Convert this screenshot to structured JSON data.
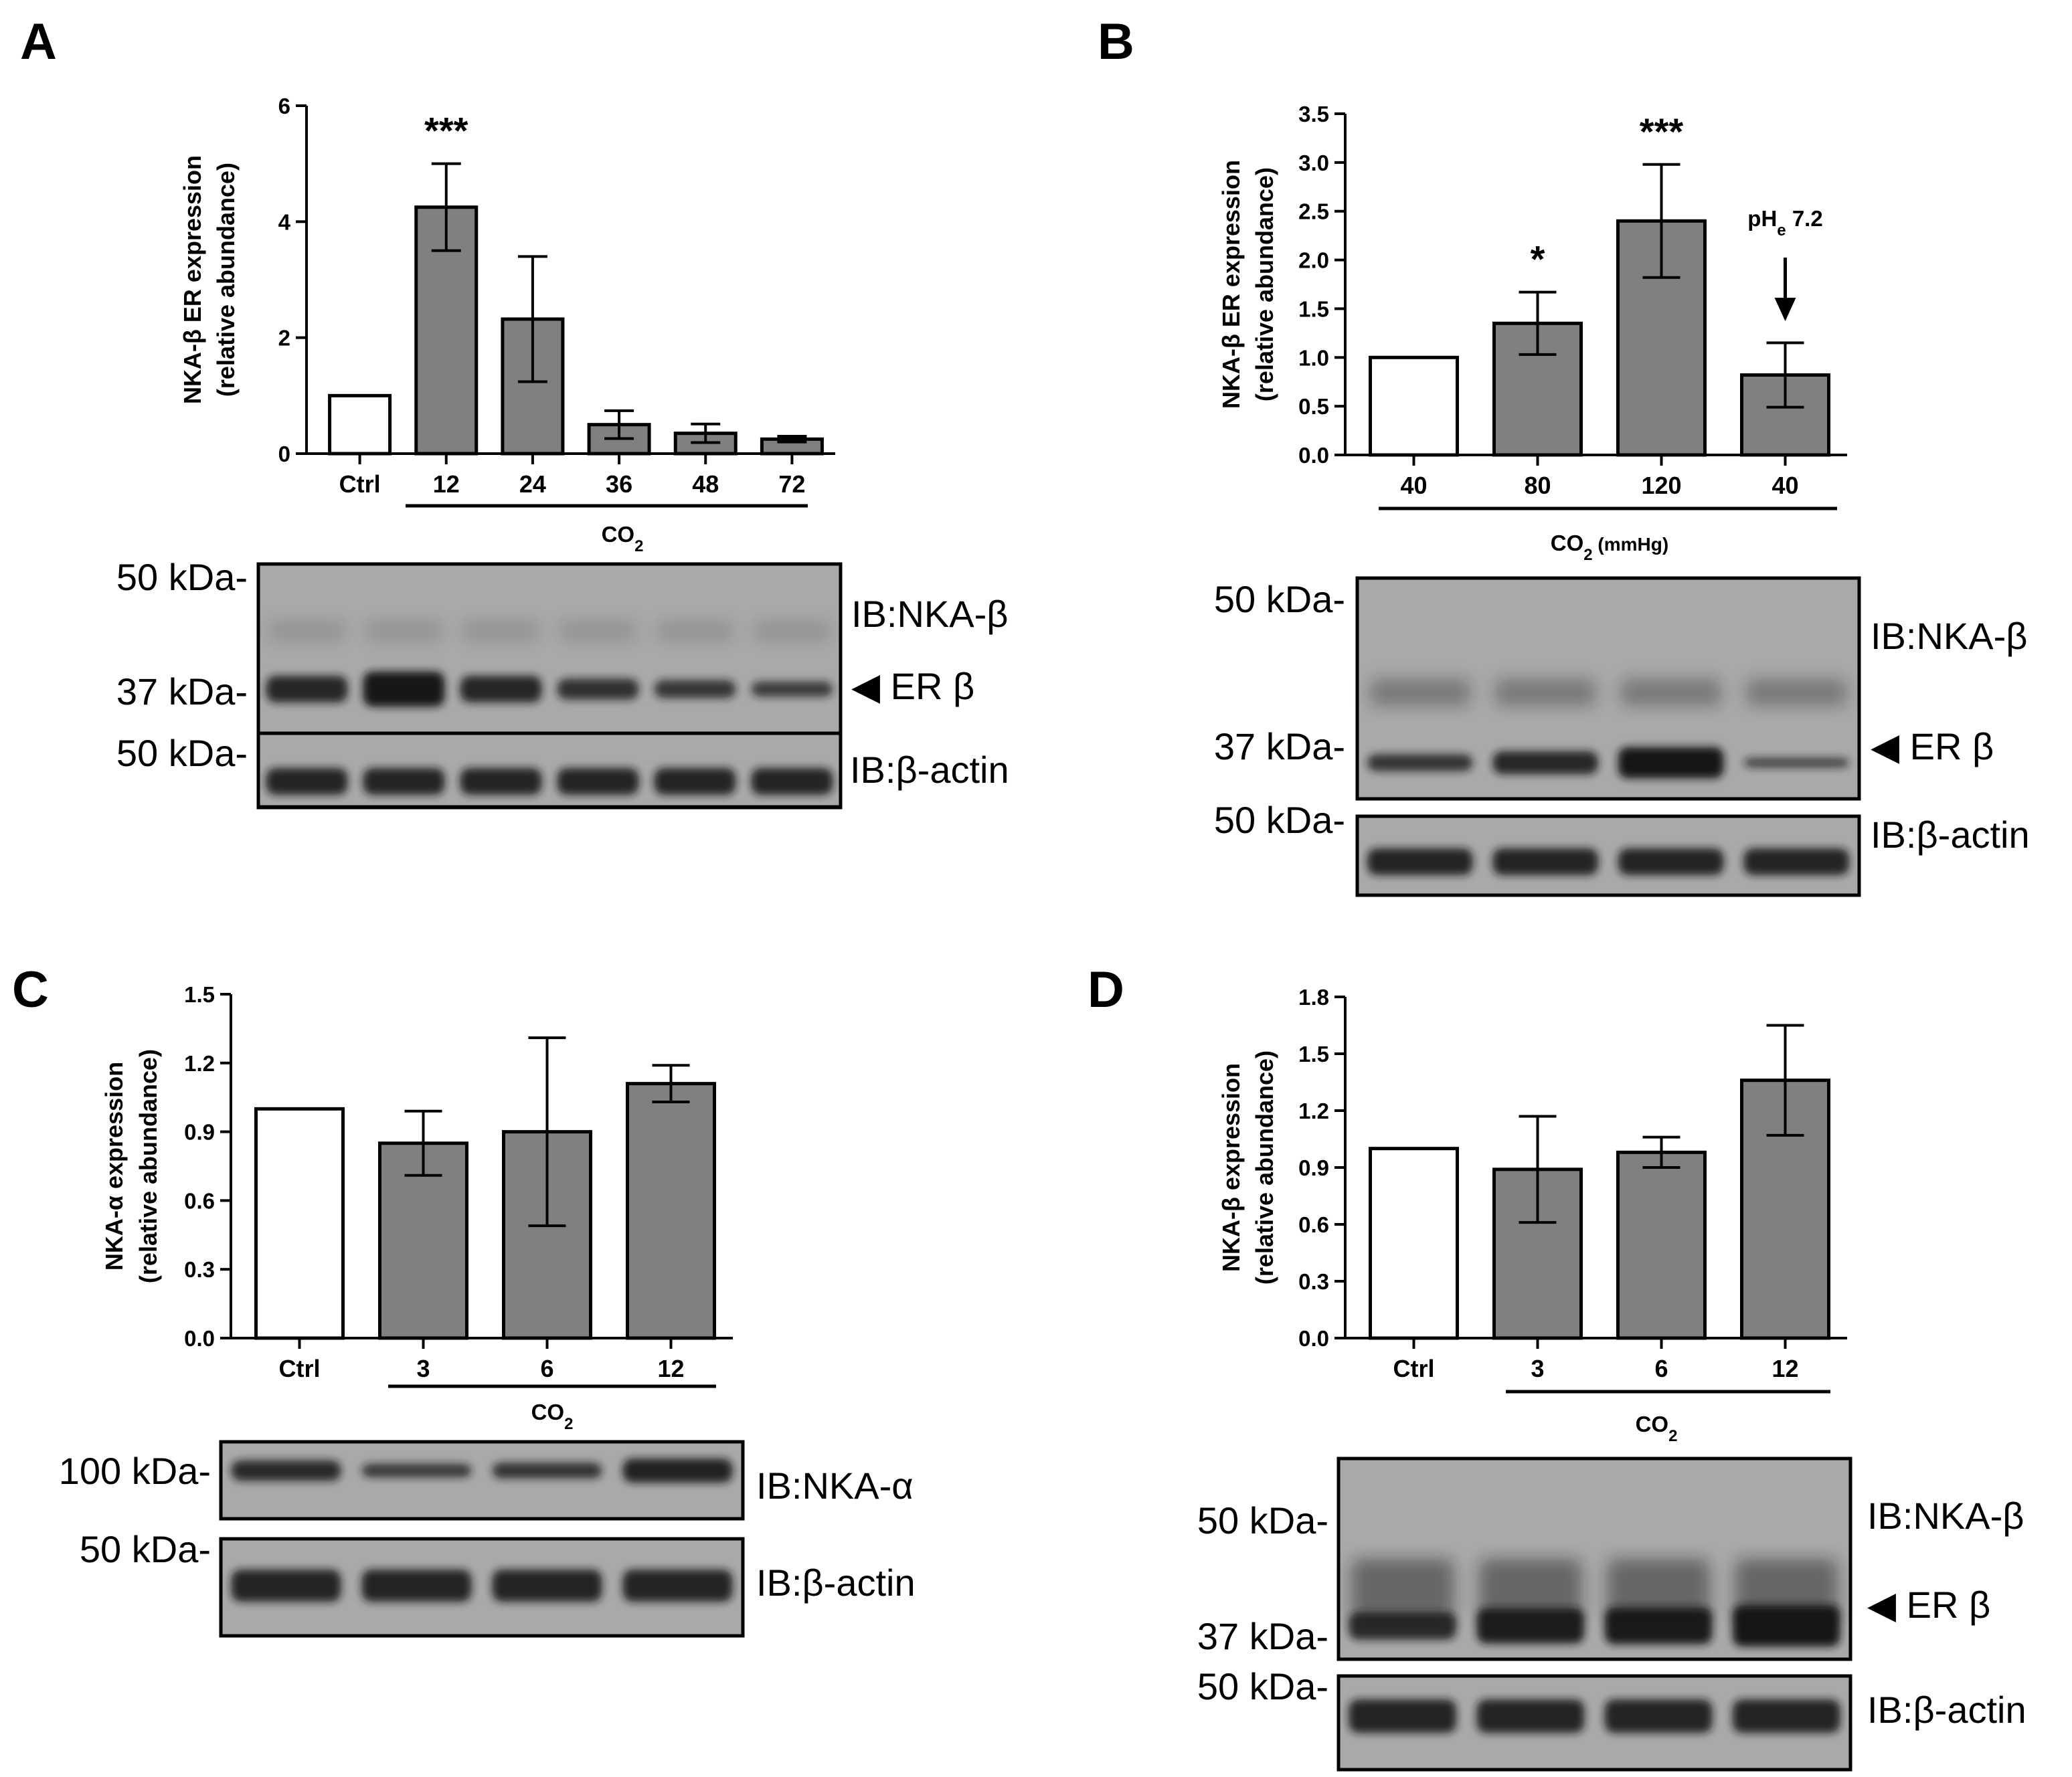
{
  "colors": {
    "control_bar": "#ffffff",
    "treated_bar": "#808080",
    "axis": "#000000",
    "blot_bg": "#a9a9a9",
    "band": "#141414"
  },
  "chart_data": [
    {
      "panel": "A",
      "type": "bar",
      "ylabel_line1": "NKA-β ER expression",
      "ylabel_line2": "(relative abundance)",
      "categories": [
        "Ctrl",
        "12",
        "24",
        "36",
        "48",
        "72"
      ],
      "values": [
        1.0,
        4.25,
        2.32,
        0.5,
        0.35,
        0.25
      ],
      "errors": [
        0,
        0.75,
        1.08,
        0.24,
        0.16,
        0.05
      ],
      "significance": [
        "",
        "***",
        "",
        "",
        "",
        ""
      ],
      "ylim": [
        0,
        6
      ],
      "yticks": [
        "0",
        "2",
        "4",
        "6"
      ],
      "group_label": "CO",
      "group_label_sub": "2",
      "group_label_suffix": "",
      "blots": {
        "markers_top": [
          "50 kDa-",
          "37 kDa-"
        ],
        "marker_bottom": "50 kDa-",
        "label_top": "IB:NKA-β",
        "label_er": "◀ ER β",
        "label_bottom": "IB:β-actin"
      }
    },
    {
      "panel": "B",
      "type": "bar",
      "ylabel_line1": "NKA-β ER expression",
      "ylabel_line2": "(relative abundance)",
      "categories": [
        "40",
        "80",
        "120",
        "40"
      ],
      "values": [
        1.0,
        1.35,
        2.4,
        0.82
      ],
      "errors": [
        0,
        0.32,
        0.58,
        0.33
      ],
      "significance": [
        "",
        "*",
        "***",
        ""
      ],
      "ylim": [
        0,
        3.5
      ],
      "yticks": [
        "0.0",
        "0.5",
        "1.0",
        "1.5",
        "2.0",
        "2.5",
        "3.0",
        "3.5"
      ],
      "group_label": "CO",
      "group_label_sub": "2",
      "group_label_suffix": " (mmHg)",
      "annotation": {
        "text": "pH",
        "sub": "e",
        "after": " 7.2"
      },
      "blots": {
        "markers_top": [
          "50 kDa-",
          "37 kDa-"
        ],
        "marker_bottom": "50 kDa-",
        "label_top": "IB:NKA-β",
        "label_er": "◀ ER β",
        "label_bottom": "IB:β-actin"
      }
    },
    {
      "panel": "C",
      "type": "bar",
      "ylabel_line1": "NKA-α expression",
      "ylabel_line2": "(relative abundance)",
      "categories": [
        "Ctrl",
        "3",
        "6",
        "12"
      ],
      "values": [
        1.0,
        0.85,
        0.9,
        1.11
      ],
      "errors": [
        0,
        0.14,
        0.41,
        0.08
      ],
      "significance": [
        "",
        "",
        "",
        ""
      ],
      "ylim": [
        0,
        1.5
      ],
      "yticks": [
        "0.0",
        "0.3",
        "0.6",
        "0.9",
        "1.2",
        "1.5"
      ],
      "group_label": "CO",
      "group_label_sub": "2",
      "group_label_suffix": "",
      "blots": {
        "markers_top": [
          "100 kDa-"
        ],
        "marker_bottom": "50 kDa-",
        "label_top": "IB:NKA-α",
        "label_er": "",
        "label_bottom": "IB:β-actin"
      }
    },
    {
      "panel": "D",
      "type": "bar",
      "ylabel_line1": "NKA-β expression",
      "ylabel_line2": "(relative abundance)",
      "categories": [
        "Ctrl",
        "3",
        "6",
        "12"
      ],
      "values": [
        1.0,
        0.89,
        0.98,
        1.36
      ],
      "errors": [
        0,
        0.28,
        0.08,
        0.29
      ],
      "significance": [
        "",
        "",
        "",
        ""
      ],
      "ylim": [
        0,
        1.8
      ],
      "yticks": [
        "0.0",
        "0.3",
        "0.6",
        "0.9",
        "1.2",
        "1.5",
        "1.8"
      ],
      "group_label": "CO",
      "group_label_sub": "2",
      "group_label_suffix": "",
      "blots": {
        "markers_top": [
          "50 kDa-",
          "37 kDa-"
        ],
        "marker_bottom": "50 kDa-",
        "label_top": "IB:NKA-β",
        "label_er": "◀ ER β",
        "label_bottom": "IB:β-actin"
      }
    }
  ]
}
